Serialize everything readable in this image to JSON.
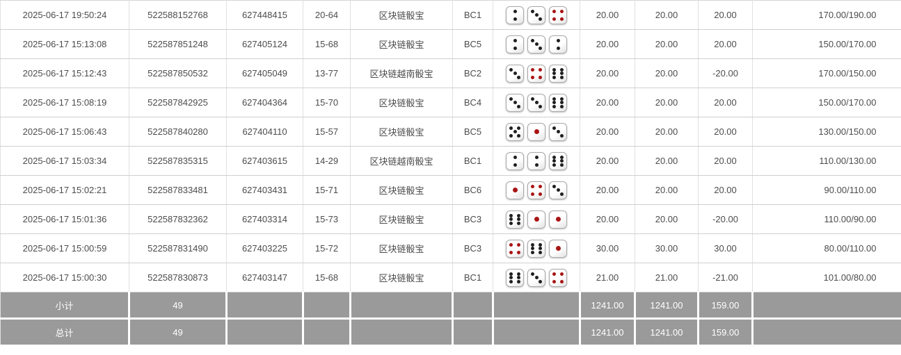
{
  "colors": {
    "accent_blue": "#3a6fc5",
    "negative_red": "#e53535",
    "footer_gray": "#9a9a9a",
    "pip_black": "#1f1f1f",
    "pip_red": "#a81414"
  },
  "table": {
    "rows": [
      {
        "time": "2025-06-17 19:50:24",
        "bet_id": "522588152768",
        "round_id": "627448415",
        "result": "20-64",
        "game": "区块链骰宝",
        "table_code": "BC1",
        "dice": [
          2,
          3,
          4
        ],
        "valid_amount": "20.00",
        "bet_amount": "20.00",
        "win_loss": "20.00",
        "balance": "170.00/190.00"
      },
      {
        "time": "2025-06-17 15:13:08",
        "bet_id": "522587851248",
        "round_id": "627405124",
        "result": "15-68",
        "game": "区块链骰宝",
        "table_code": "BC5",
        "dice": [
          2,
          3,
          2
        ],
        "valid_amount": "20.00",
        "bet_amount": "20.00",
        "win_loss": "20.00",
        "balance": "150.00/170.00"
      },
      {
        "time": "2025-06-17 15:12:43",
        "bet_id": "522587850532",
        "round_id": "627405049",
        "result": "13-77",
        "game": "区块链越南骰宝",
        "table_code": "BC2",
        "dice": [
          3,
          4,
          6
        ],
        "valid_amount": "20.00",
        "bet_amount": "20.00",
        "win_loss": "-20.00",
        "balance": "170.00/150.00"
      },
      {
        "time": "2025-06-17 15:08:19",
        "bet_id": "522587842925",
        "round_id": "627404364",
        "result": "15-70",
        "game": "区块链骰宝",
        "table_code": "BC4",
        "dice": [
          3,
          3,
          6
        ],
        "valid_amount": "20.00",
        "bet_amount": "20.00",
        "win_loss": "20.00",
        "balance": "150.00/170.00"
      },
      {
        "time": "2025-06-17 15:06:43",
        "bet_id": "522587840280",
        "round_id": "627404110",
        "result": "15-57",
        "game": "区块链骰宝",
        "table_code": "BC5",
        "dice": [
          5,
          1,
          3
        ],
        "valid_amount": "20.00",
        "bet_amount": "20.00",
        "win_loss": "20.00",
        "balance": "130.00/150.00"
      },
      {
        "time": "2025-06-17 15:03:34",
        "bet_id": "522587835315",
        "round_id": "627403615",
        "result": "14-29",
        "game": "区块链越南骰宝",
        "table_code": "BC1",
        "dice": [
          2,
          2,
          6
        ],
        "valid_amount": "20.00",
        "bet_amount": "20.00",
        "win_loss": "20.00",
        "balance": "110.00/130.00"
      },
      {
        "time": "2025-06-17 15:02:21",
        "bet_id": "522587833481",
        "round_id": "627403431",
        "result": "15-71",
        "game": "区块链骰宝",
        "table_code": "BC6",
        "dice": [
          1,
          4,
          3
        ],
        "valid_amount": "20.00",
        "bet_amount": "20.00",
        "win_loss": "20.00",
        "balance": "90.00/110.00"
      },
      {
        "time": "2025-06-17 15:01:36",
        "bet_id": "522587832362",
        "round_id": "627403314",
        "result": "15-73",
        "game": "区块链骰宝",
        "table_code": "BC3",
        "dice": [
          6,
          1,
          1
        ],
        "valid_amount": "20.00",
        "bet_amount": "20.00",
        "win_loss": "-20.00",
        "balance": "110.00/90.00"
      },
      {
        "time": "2025-06-17 15:00:59",
        "bet_id": "522587831490",
        "round_id": "627403225",
        "result": "15-72",
        "game": "区块链骰宝",
        "table_code": "BC3",
        "dice": [
          4,
          6,
          1
        ],
        "valid_amount": "30.00",
        "bet_amount": "30.00",
        "win_loss": "30.00",
        "balance": "80.00/110.00"
      },
      {
        "time": "2025-06-17 15:00:30",
        "bet_id": "522587830873",
        "round_id": "627403147",
        "result": "15-68",
        "game": "区块链骰宝",
        "table_code": "BC1",
        "dice": [
          6,
          3,
          4
        ],
        "valid_amount": "21.00",
        "bet_amount": "21.00",
        "win_loss": "-21.00",
        "balance": "101.00/80.00"
      }
    ],
    "subtotal": {
      "label": "小计",
      "count": "49",
      "valid_amount": "1241.00",
      "bet_amount": "1241.00",
      "win_loss": "159.00"
    },
    "total": {
      "label": "总计",
      "count": "49",
      "valid_amount": "1241.00",
      "bet_amount": "1241.00",
      "win_loss": "159.00"
    }
  }
}
